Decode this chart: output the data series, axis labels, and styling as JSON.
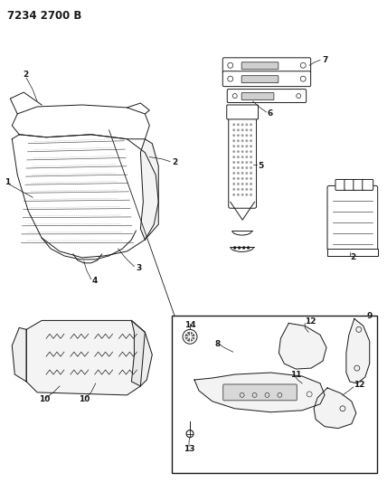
{
  "title": "7234 2700 B",
  "bg_color": "#ffffff",
  "line_color": "#1a1a1a",
  "fig_width": 4.28,
  "fig_height": 5.33,
  "dpi": 100
}
